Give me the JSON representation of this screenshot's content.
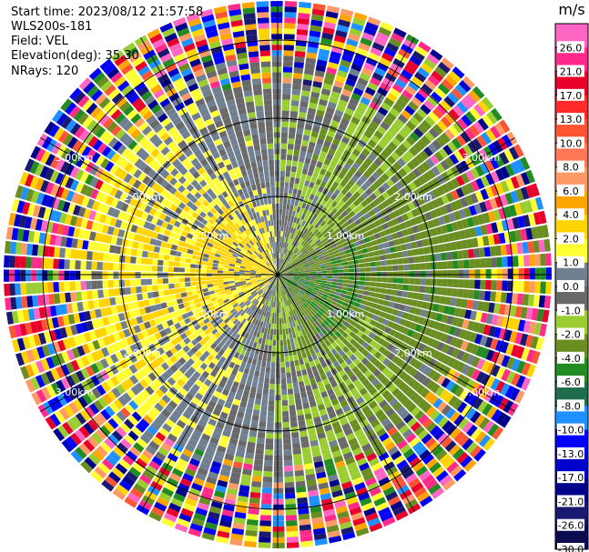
{
  "header": {
    "start_time": "Start time: 2023/08/12 21:57:58",
    "instrument": "WLS200s-181",
    "field": "Field: VEL",
    "elevation": "Elevation(deg): 35.30",
    "nrays": "NRays: 120"
  },
  "chart_data": {
    "type": "heatmap",
    "projection": "polar-ppi",
    "field": "VEL",
    "units": "m/s",
    "nrays": 120,
    "elevation_deg": 35.3,
    "range_rings_km": [
      1.0,
      2.0,
      3.0
    ],
    "max_range_km": 3.5,
    "range_ring_labels": [
      "1.00km",
      "2.00km",
      "3.00km"
    ],
    "colorbar": {
      "title": "m/s",
      "vmin": -30.0,
      "vmax": 30.0,
      "tick_labels": [
        "26.0",
        "21.0",
        "17.0",
        "13.0",
        "10.0",
        "8.0",
        "6.0",
        "4.0",
        "2.0",
        "1.0",
        "0.0",
        "-1.0",
        "-2.0",
        "-4.0",
        "-6.0",
        "-8.0",
        "-10.0",
        "-13.0",
        "-17.0",
        "-21.0",
        "-26.0",
        "-30.0"
      ],
      "bins": [
        {
          "from": 26.0,
          "to": 30.0,
          "color": "#ff66c4"
        },
        {
          "from": 21.0,
          "to": 26.0,
          "color": "#ff2a8a"
        },
        {
          "from": 17.0,
          "to": 21.0,
          "color": "#e8002a"
        },
        {
          "from": 13.0,
          "to": 17.0,
          "color": "#ff2a2a"
        },
        {
          "from": 10.0,
          "to": 13.0,
          "color": "#ff5533"
        },
        {
          "from": 8.0,
          "to": 10.0,
          "color": "#ff7755"
        },
        {
          "from": 6.0,
          "to": 8.0,
          "color": "#ff9966"
        },
        {
          "from": 4.0,
          "to": 6.0,
          "color": "#ffa500"
        },
        {
          "from": 2.0,
          "to": 4.0,
          "color": "#ffd400"
        },
        {
          "from": 1.0,
          "to": 2.0,
          "color": "#ffff33"
        },
        {
          "from": 0.0,
          "to": 1.0,
          "color": "#708090"
        },
        {
          "from": -1.0,
          "to": 0.0,
          "color": "#696969"
        },
        {
          "from": -2.0,
          "to": -1.0,
          "color": "#9acd32"
        },
        {
          "from": -4.0,
          "to": -2.0,
          "color": "#6b8e23"
        },
        {
          "from": -6.0,
          "to": -4.0,
          "color": "#228b22"
        },
        {
          "from": -8.0,
          "to": -6.0,
          "color": "#1e6e4e"
        },
        {
          "from": -10.0,
          "to": -8.0,
          "color": "#1e90ff"
        },
        {
          "from": -13.0,
          "to": -10.0,
          "color": "#0000ff"
        },
        {
          "from": -17.0,
          "to": -13.0,
          "color": "#0000cd"
        },
        {
          "from": -21.0,
          "to": -17.0,
          "color": "#00008b"
        },
        {
          "from": -26.0,
          "to": -21.0,
          "color": "#191970"
        },
        {
          "from": -30.0,
          "to": -26.0,
          "color": "#0b0b50"
        }
      ]
    },
    "palette_noisy": [
      "#ff2a8a",
      "#e8002a",
      "#0000ff",
      "#ffd400",
      "#9acd32",
      "#191970",
      "#ff66c4",
      "#1e90ff",
      "#ff5533",
      "#00008b",
      "#228b22",
      "#ffff33",
      "#ff9966",
      "#6b8e23",
      "#0000cd",
      "#ffa500"
    ],
    "regions": [
      {
        "name": "clear-inner",
        "r_from_km": 0.0,
        "r_to_km": 2.45
      },
      {
        "name": "transition",
        "r_from_km": 2.45,
        "r_to_km": 2.75
      },
      {
        "name": "noise",
        "r_from_km": 2.75,
        "r_to_km": 3.5
      }
    ]
  }
}
